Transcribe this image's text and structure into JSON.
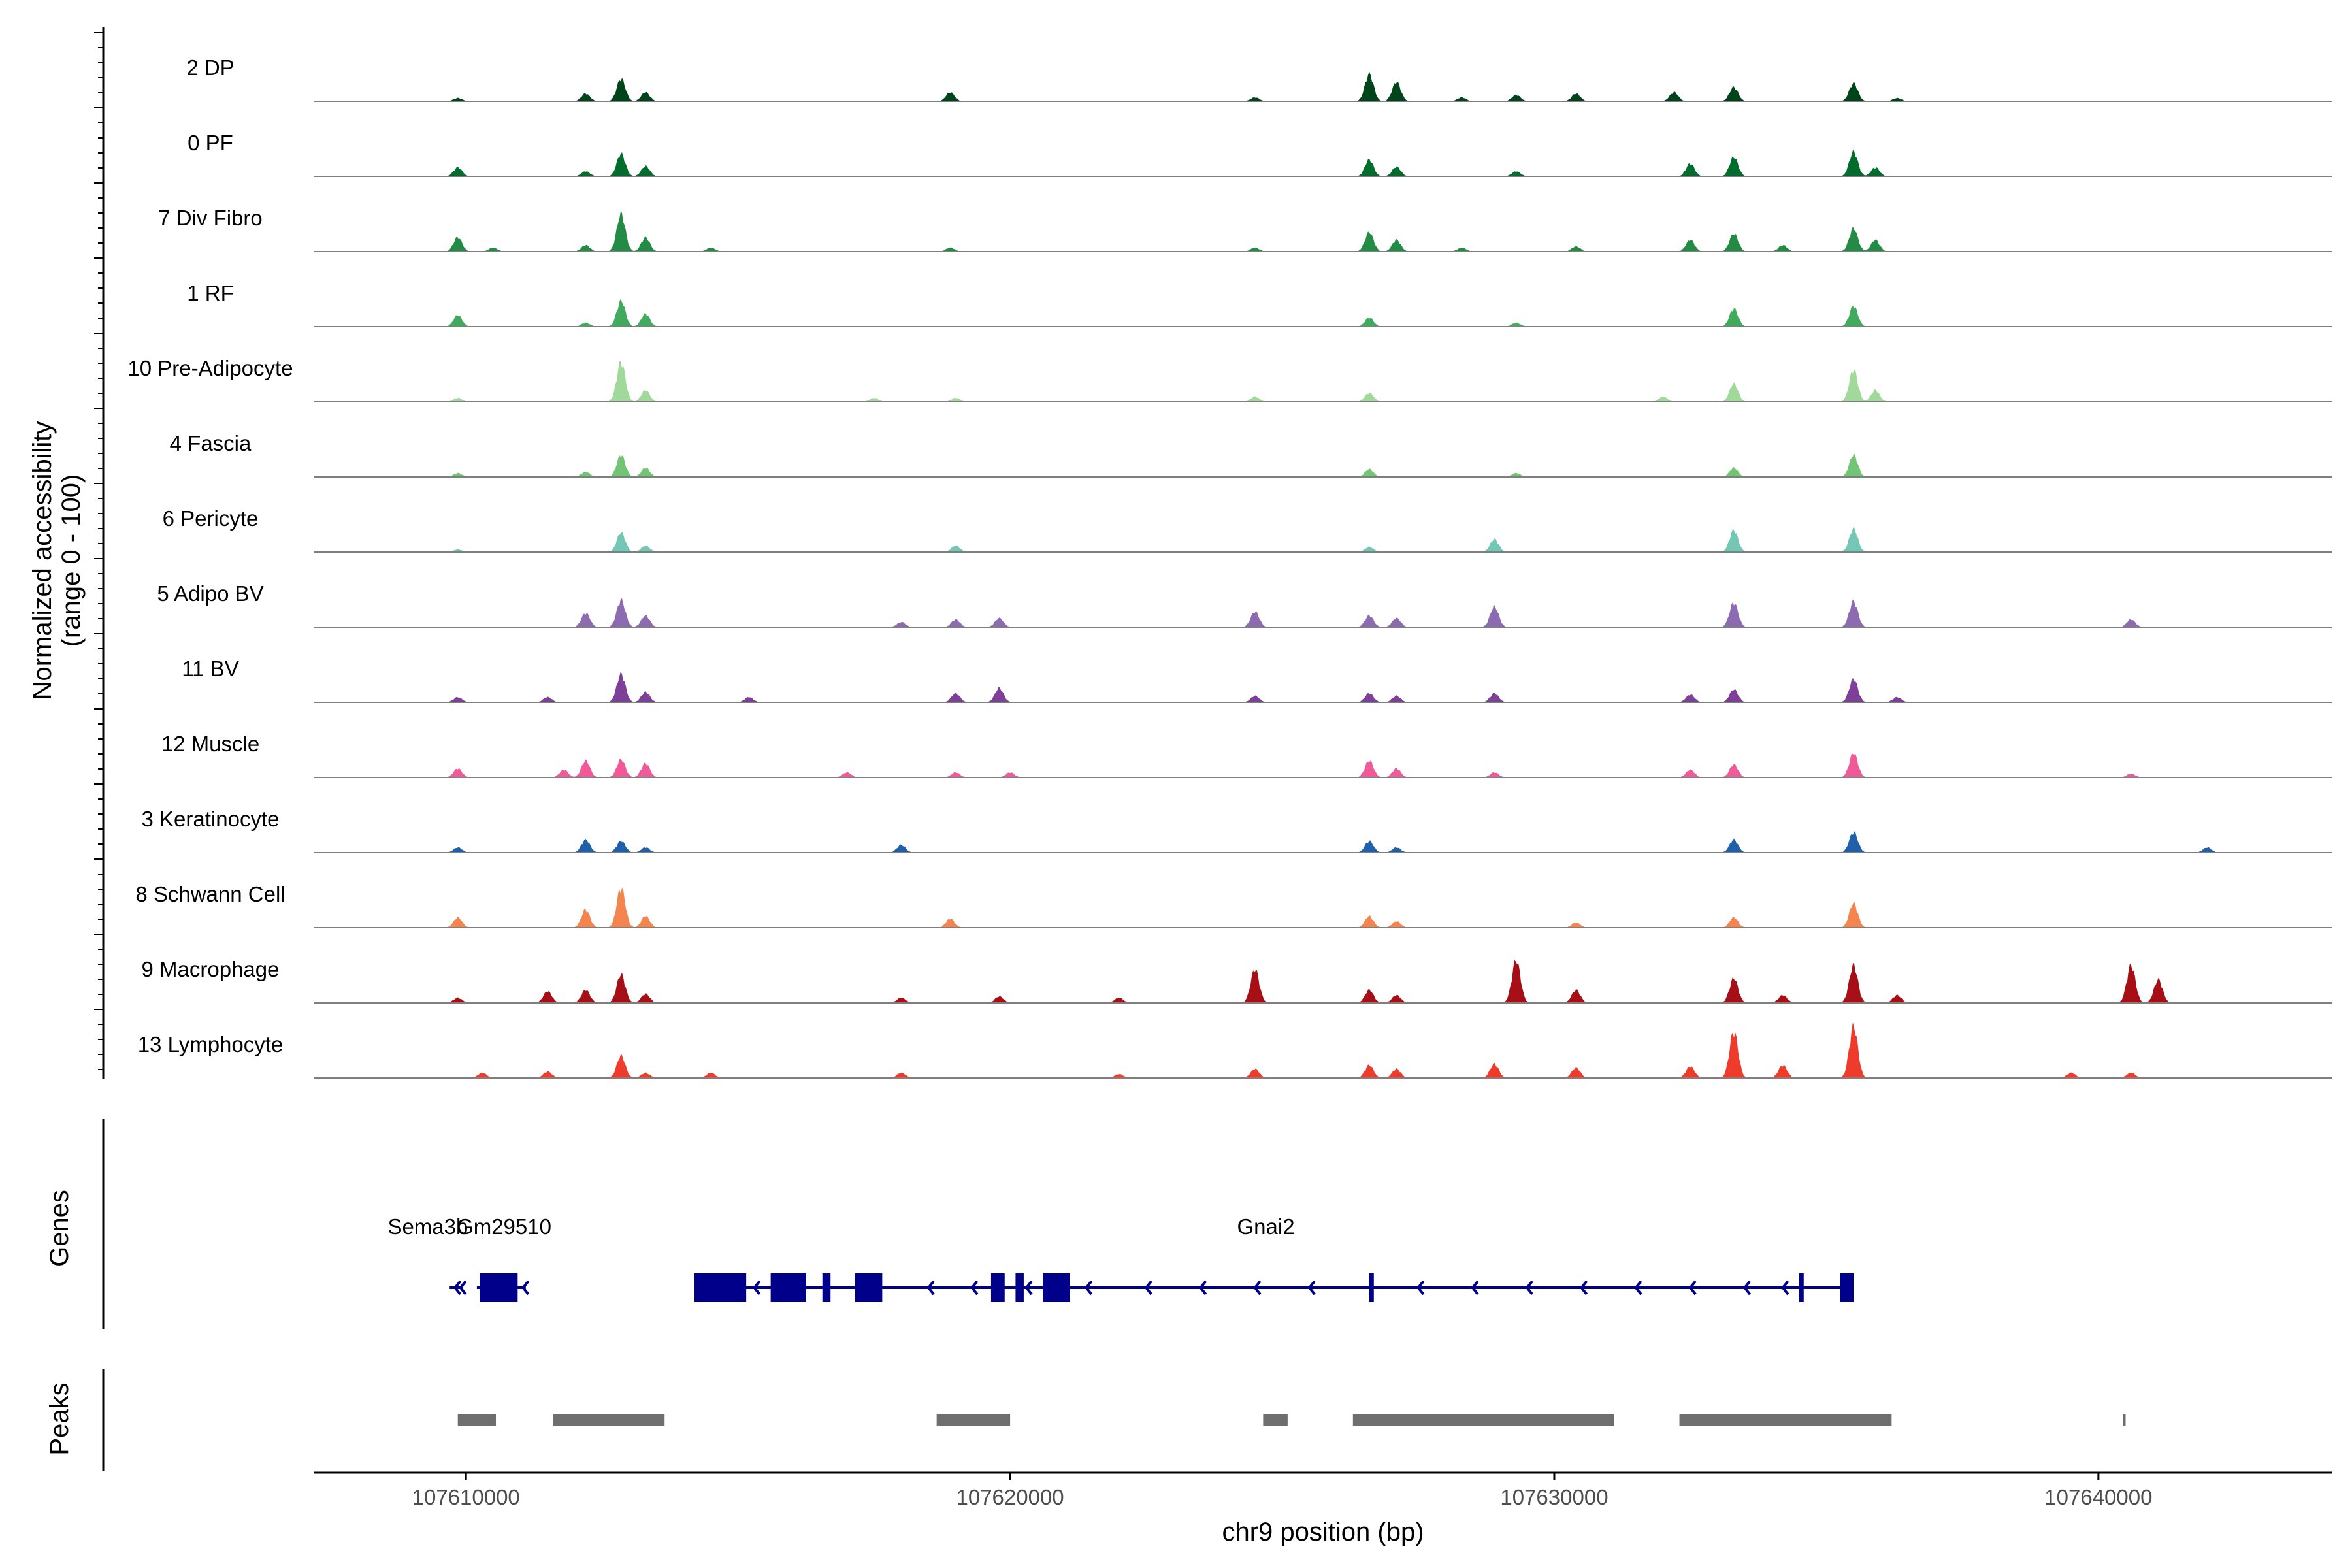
{
  "chart_data": {
    "type": "area",
    "title": "",
    "chromosome": "chr9",
    "xlabel": "chr9 position (bp)",
    "ylabel_line1": "Normalized accessibility",
    "ylabel_line2": "(range 0 - 100)",
    "xlim": [
      107607200,
      107644300
    ],
    "x_ticks": [
      107610000,
      107620000,
      107630000,
      107640000
    ],
    "x_tick_labels": [
      "107610000",
      "107620000",
      "107630000",
      "107640000"
    ],
    "tracks": [
      {
        "name": "2 DP",
        "color": "#00441b",
        "peaks": [
          [
            107609850,
            5
          ],
          [
            107612200,
            12
          ],
          [
            107612850,
            35
          ],
          [
            107613300,
            14
          ],
          [
            107618900,
            14
          ],
          [
            107624500,
            6
          ],
          [
            107626600,
            42
          ],
          [
            107627100,
            30
          ],
          [
            107628300,
            6
          ],
          [
            107629300,
            10
          ],
          [
            107630400,
            12
          ],
          [
            107632200,
            14
          ],
          [
            107633300,
            22
          ],
          [
            107635500,
            28
          ],
          [
            107636300,
            5
          ]
        ]
      },
      {
        "name": "0 PF",
        "color": "#006d2c",
        "peaks": [
          [
            107609850,
            14
          ],
          [
            107612200,
            8
          ],
          [
            107612850,
            35
          ],
          [
            107613300,
            16
          ],
          [
            107626600,
            26
          ],
          [
            107627100,
            15
          ],
          [
            107629300,
            8
          ],
          [
            107632500,
            20
          ],
          [
            107633300,
            30
          ],
          [
            107635500,
            38
          ],
          [
            107635900,
            14
          ]
        ]
      },
      {
        "name": "7 Div Fibro",
        "color": "#238b45",
        "peaks": [
          [
            107609850,
            22
          ],
          [
            107610500,
            6
          ],
          [
            107612200,
            10
          ],
          [
            107612850,
            58
          ],
          [
            107613300,
            22
          ],
          [
            107614500,
            6
          ],
          [
            107618900,
            6
          ],
          [
            107624500,
            6
          ],
          [
            107626600,
            30
          ],
          [
            107627100,
            18
          ],
          [
            107628300,
            6
          ],
          [
            107630400,
            8
          ],
          [
            107632500,
            18
          ],
          [
            107633300,
            28
          ],
          [
            107634200,
            10
          ],
          [
            107635500,
            36
          ],
          [
            107635900,
            18
          ]
        ]
      },
      {
        "name": "1 RF",
        "color": "#41ab5d",
        "peaks": [
          [
            107609850,
            18
          ],
          [
            107612200,
            6
          ],
          [
            107612850,
            40
          ],
          [
            107613300,
            20
          ],
          [
            107626600,
            14
          ],
          [
            107629300,
            6
          ],
          [
            107633300,
            28
          ],
          [
            107635500,
            32
          ]
        ]
      },
      {
        "name": "10 Pre-Adipocyte",
        "color": "#a1d99b",
        "peaks": [
          [
            107609850,
            6
          ],
          [
            107612850,
            62
          ],
          [
            107613300,
            18
          ],
          [
            107617500,
            6
          ],
          [
            107619000,
            6
          ],
          [
            107624500,
            8
          ],
          [
            107626600,
            14
          ],
          [
            107632000,
            8
          ],
          [
            107633300,
            28
          ],
          [
            107635500,
            50
          ],
          [
            107635900,
            18
          ]
        ]
      },
      {
        "name": "4 Fascia",
        "color": "#74c476",
        "peaks": [
          [
            107609850,
            6
          ],
          [
            107612200,
            8
          ],
          [
            107612850,
            34
          ],
          [
            107613300,
            14
          ],
          [
            107626600,
            12
          ],
          [
            107629300,
            6
          ],
          [
            107633300,
            14
          ],
          [
            107635500,
            34
          ]
        ]
      },
      {
        "name": "6 Pericyte",
        "color": "#74c7b4",
        "peaks": [
          [
            107609850,
            4
          ],
          [
            107612850,
            30
          ],
          [
            107613300,
            10
          ],
          [
            107619000,
            10
          ],
          [
            107626600,
            8
          ],
          [
            107628900,
            20
          ],
          [
            107633300,
            34
          ],
          [
            107635500,
            36
          ]
        ]
      },
      {
        "name": "5 Adipo BV",
        "color": "#8c6bb1",
        "peaks": [
          [
            107612200,
            22
          ],
          [
            107612850,
            42
          ],
          [
            107613300,
            18
          ],
          [
            107618000,
            8
          ],
          [
            107619000,
            12
          ],
          [
            107619800,
            14
          ],
          [
            107624500,
            24
          ],
          [
            107626600,
            18
          ],
          [
            107627100,
            14
          ],
          [
            107628900,
            32
          ],
          [
            107633300,
            38
          ],
          [
            107635500,
            40
          ],
          [
            107640600,
            12
          ]
        ]
      },
      {
        "name": "11 BV",
        "color": "#7d3f98",
        "peaks": [
          [
            107609850,
            8
          ],
          [
            107611500,
            8
          ],
          [
            107612850,
            44
          ],
          [
            107613300,
            16
          ],
          [
            107615200,
            8
          ],
          [
            107619000,
            14
          ],
          [
            107619800,
            22
          ],
          [
            107624500,
            10
          ],
          [
            107626600,
            14
          ],
          [
            107627100,
            10
          ],
          [
            107628900,
            14
          ],
          [
            107632500,
            12
          ],
          [
            107633300,
            20
          ],
          [
            107635500,
            36
          ],
          [
            107636300,
            8
          ]
        ]
      },
      {
        "name": "12 Muscle",
        "color": "#f15a99",
        "peaks": [
          [
            107609850,
            14
          ],
          [
            107611800,
            12
          ],
          [
            107612200,
            26
          ],
          [
            107612850,
            28
          ],
          [
            107613300,
            22
          ],
          [
            107617000,
            8
          ],
          [
            107619000,
            8
          ],
          [
            107620000,
            8
          ],
          [
            107626600,
            26
          ],
          [
            107627100,
            14
          ],
          [
            107628900,
            8
          ],
          [
            107632500,
            12
          ],
          [
            107633300,
            20
          ],
          [
            107635500,
            38
          ],
          [
            107640600,
            6
          ]
        ]
      },
      {
        "name": "3 Keratinocyte",
        "color": "#2060a8",
        "peaks": [
          [
            107609850,
            8
          ],
          [
            107612200,
            20
          ],
          [
            107612850,
            18
          ],
          [
            107613300,
            8
          ],
          [
            107618000,
            12
          ],
          [
            107626600,
            18
          ],
          [
            107627100,
            8
          ],
          [
            107633300,
            20
          ],
          [
            107635500,
            32
          ],
          [
            107642000,
            8
          ]
        ]
      },
      {
        "name": "8 Schwann Cell",
        "color": "#f4854f",
        "peaks": [
          [
            107609850,
            16
          ],
          [
            107612200,
            28
          ],
          [
            107612850,
            62
          ],
          [
            107613300,
            18
          ],
          [
            107618900,
            14
          ],
          [
            107626600,
            18
          ],
          [
            107627100,
            10
          ],
          [
            107630400,
            8
          ],
          [
            107633300,
            16
          ],
          [
            107635500,
            38
          ]
        ]
      },
      {
        "name": "9 Macrophage",
        "color": "#a50f15",
        "peaks": [
          [
            107609850,
            8
          ],
          [
            107611500,
            18
          ],
          [
            107612200,
            20
          ],
          [
            107612850,
            44
          ],
          [
            107613300,
            14
          ],
          [
            107618000,
            8
          ],
          [
            107619800,
            10
          ],
          [
            107622000,
            8
          ],
          [
            107624500,
            52
          ],
          [
            107626600,
            20
          ],
          [
            107627100,
            12
          ],
          [
            107629300,
            66
          ],
          [
            107630400,
            20
          ],
          [
            107633300,
            38
          ],
          [
            107634200,
            12
          ],
          [
            107635500,
            58
          ],
          [
            107636300,
            12
          ],
          [
            107640600,
            58
          ],
          [
            107641100,
            36
          ]
        ]
      },
      {
        "name": "13 Lymphocyte",
        "color": "#ef3b2c",
        "peaks": [
          [
            107610300,
            8
          ],
          [
            107611500,
            10
          ],
          [
            107612850,
            34
          ],
          [
            107613300,
            8
          ],
          [
            107614500,
            8
          ],
          [
            107618000,
            8
          ],
          [
            107622000,
            6
          ],
          [
            107624500,
            14
          ],
          [
            107626600,
            20
          ],
          [
            107627100,
            14
          ],
          [
            107628900,
            22
          ],
          [
            107630400,
            16
          ],
          [
            107632500,
            18
          ],
          [
            107633300,
            72
          ],
          [
            107634200,
            20
          ],
          [
            107635500,
            80
          ],
          [
            107639500,
            8
          ],
          [
            107640600,
            8
          ]
        ]
      }
    ],
    "genes_label": "Genes",
    "peaks_label": "Peaks",
    "gene_color": "#00008b",
    "genes": [
      {
        "name": "Sema3b",
        "start": 107609700,
        "end": 107609950,
        "exons": [],
        "arrows": [
          107609800,
          107609900
        ],
        "label_anchor": 107609300
      },
      {
        "name": "Gm29510",
        "start": 107610200,
        "end": 107611100,
        "exons": [
          [
            107610250,
            107610950
          ]
        ],
        "arrows": [
          107611050
        ],
        "label_anchor": 107610700
      },
      {
        "name": "Gnai2",
        "start": 107614200,
        "end": 107635500,
        "exons": [
          [
            107614200,
            107615150
          ],
          [
            107615600,
            107616250
          ],
          [
            107616550,
            107616700
          ],
          [
            107617150,
            107617650
          ],
          [
            107619650,
            107619900
          ],
          [
            107620100,
            107620250
          ],
          [
            107620600,
            107621100
          ],
          [
            107626600,
            107626650
          ],
          [
            107634500,
            107634550
          ],
          [
            107635250,
            107635500
          ]
        ],
        "arrows": [
          107615300,
          107618500,
          107619300,
          107620300,
          107621400,
          107622500,
          107623500,
          107624500,
          107625500,
          107627500,
          107628500,
          107629500,
          107630500,
          107631500,
          107632500,
          107633500,
          107634200
        ],
        "label_anchor": 107624700
      }
    ],
    "peak_regions": [
      [
        107609850,
        107610550
      ],
      [
        107611600,
        107613650
      ],
      [
        107618650,
        107620000
      ],
      [
        107624650,
        107625100
      ],
      [
        107626300,
        107631100
      ],
      [
        107632300,
        107636200
      ],
      [
        107640450,
        107640500
      ]
    ]
  }
}
